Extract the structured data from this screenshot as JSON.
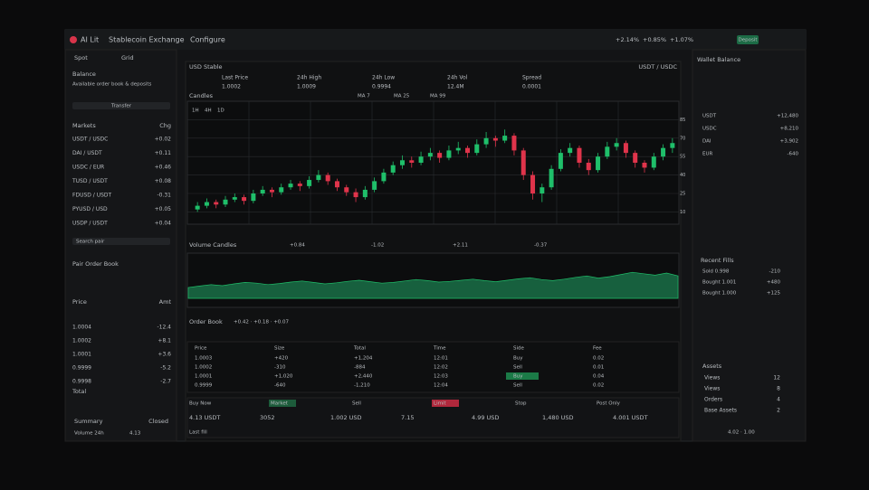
{
  "header": {
    "brand": "AI Lit",
    "title": "Stablecoin Exchange",
    "menu": "Configure",
    "tickers": [
      "+2.14%",
      "+0.85%",
      "+1.07%"
    ],
    "button": "Deposit"
  },
  "left": {
    "tabs": [
      "Spot",
      "Grid"
    ],
    "balance_label": "Balance",
    "balance_note": "Available order book & deposits",
    "transfer": "Transfer",
    "columns": [
      "Markets",
      "Chg"
    ],
    "markets": [
      [
        "USDT / USDC",
        "+0.02"
      ],
      [
        "DAI / USDT",
        "+0.11"
      ],
      [
        "USDC / EUR",
        "+0.46"
      ],
      [
        "TUSD / USDT",
        "+0.08"
      ],
      [
        "FDUSD / USDT",
        "-0.31"
      ],
      [
        "PYUSD / USD",
        "+0.05"
      ],
      [
        "USDP / USDT",
        "+0.04"
      ]
    ],
    "search": "Search pair",
    "book_title": "Pair Order Book",
    "book_cols": [
      "Price",
      "Amt"
    ],
    "book_total": "Total",
    "book_rows": [
      [
        "1.0004",
        "-12.4"
      ],
      [
        "1.0002",
        "+8.1"
      ],
      [
        "1.0001",
        "+3.6"
      ],
      [
        "0.9999",
        "-5.2"
      ],
      [
        "0.9998",
        "-2.7"
      ]
    ],
    "summary_label": "Summary",
    "summary_value": "Closed",
    "volume_label": "Volume 24h",
    "volume_value": "4.13"
  },
  "center": {
    "symbol": "USD Stable",
    "pair": "USDT / USDC",
    "stats": [
      [
        "Last Price",
        "1.0002"
      ],
      [
        "24h High",
        "1.0009"
      ],
      [
        "24h Low",
        "0.9994"
      ],
      [
        "24h Vol",
        "12.4M"
      ],
      [
        "Spread",
        "0.0001"
      ]
    ],
    "chart_title": "Candles",
    "indicators": [
      "MA 7",
      "MA 25",
      "MA 99"
    ],
    "intervals": [
      "1H",
      "4H",
      "1D"
    ],
    "price_chart": {
      "ylim": [
        0,
        100
      ],
      "yticks": [
        10,
        25,
        40,
        55,
        70,
        85
      ],
      "candles": [
        [
          12,
          18,
          10,
          15
        ],
        [
          15,
          21,
          13,
          18
        ],
        [
          18,
          20,
          13,
          16
        ],
        [
          16,
          23,
          14,
          20
        ],
        [
          20,
          25,
          18,
          22
        ],
        [
          22,
          24,
          16,
          19
        ],
        [
          19,
          28,
          17,
          25
        ],
        [
          25,
          31,
          23,
          28
        ],
        [
          28,
          30,
          22,
          26
        ],
        [
          26,
          33,
          24,
          30
        ],
        [
          30,
          36,
          28,
          33
        ],
        [
          33,
          35,
          27,
          31
        ],
        [
          31,
          39,
          29,
          36
        ],
        [
          36,
          44,
          34,
          40
        ],
        [
          40,
          42,
          32,
          35
        ],
        [
          35,
          37,
          27,
          30
        ],
        [
          30,
          32,
          23,
          26
        ],
        [
          26,
          29,
          18,
          22
        ],
        [
          22,
          31,
          20,
          28
        ],
        [
          28,
          38,
          26,
          35
        ],
        [
          35,
          45,
          33,
          42
        ],
        [
          42,
          51,
          40,
          48
        ],
        [
          48,
          56,
          45,
          52
        ],
        [
          52,
          55,
          46,
          50
        ],
        [
          50,
          59,
          48,
          55
        ],
        [
          55,
          62,
          52,
          58
        ],
        [
          58,
          60,
          50,
          54
        ],
        [
          54,
          64,
          52,
          60
        ],
        [
          60,
          67,
          57,
          62
        ],
        [
          62,
          64,
          54,
          58
        ],
        [
          58,
          69,
          56,
          65
        ],
        [
          65,
          75,
          62,
          70
        ],
        [
          70,
          72,
          63,
          68
        ],
        [
          68,
          77,
          66,
          72
        ],
        [
          72,
          74,
          56,
          60
        ],
        [
          60,
          62,
          36,
          40
        ],
        [
          40,
          43,
          20,
          25
        ],
        [
          25,
          33,
          18,
          30
        ],
        [
          30,
          48,
          28,
          45
        ],
        [
          45,
          61,
          43,
          58
        ],
        [
          58,
          66,
          55,
          62
        ],
        [
          62,
          64,
          46,
          50
        ],
        [
          50,
          53,
          40,
          44
        ],
        [
          44,
          58,
          42,
          55
        ],
        [
          55,
          67,
          53,
          63
        ],
        [
          63,
          70,
          60,
          66
        ],
        [
          66,
          68,
          54,
          58
        ],
        [
          58,
          60,
          46,
          50
        ],
        [
          50,
          52,
          42,
          46
        ],
        [
          46,
          58,
          44,
          55
        ],
        [
          55,
          65,
          52,
          62
        ],
        [
          62,
          70,
          58,
          66
        ]
      ]
    },
    "volume_title": "Volume Candles",
    "volume_tabs": [
      "+0.84",
      "-1.02",
      "+2.11",
      "-0.37"
    ],
    "volume_chart": {
      "ylim": [
        0,
        100
      ],
      "values": [
        30,
        34,
        38,
        35,
        40,
        44,
        42,
        38,
        41,
        45,
        48,
        44,
        40,
        43,
        47,
        50,
        46,
        42,
        44,
        48,
        52,
        49,
        45,
        47,
        50,
        53,
        49,
        46,
        50,
        54,
        57,
        52,
        49,
        53,
        58,
        62,
        56,
        60,
        66,
        72,
        68,
        64,
        70,
        62
      ]
    },
    "book_title": "Order Book",
    "book_meta": "+0.42 · +0.18 · +0.07",
    "book_columns": [
      "Price",
      "Size",
      "Total",
      "Time",
      "Side",
      "Fee"
    ],
    "book_rows": [
      [
        "1.0003",
        "+420",
        "+1,204",
        "12:01",
        "Buy",
        "0.02"
      ],
      [
        "1.0002",
        "-310",
        "-884",
        "12:02",
        "Sell",
        "0.01"
      ],
      [
        "1.0001",
        "+1,020",
        "+2,440",
        "12:03",
        "Buy",
        "0.04"
      ],
      [
        "0.9999",
        "-640",
        "-1,210",
        "12:04",
        "Sell",
        "0.02"
      ]
    ],
    "bottom": {
      "labels": [
        "Buy Now",
        "Market",
        "Sell",
        "Limit",
        "Stop",
        "Post Only"
      ],
      "values": [
        "4.13 USDT",
        "3052",
        "1.002 USD",
        "7.15",
        "4.99 USD",
        "1,480 USD",
        "4.001 USDT"
      ],
      "footer": "Last fill"
    }
  },
  "right": {
    "title": "Wallet Balance",
    "rows": [
      [
        "USDT",
        "+12,480"
      ],
      [
        "USDC",
        "+8,210"
      ],
      [
        "DAI",
        "+3,902"
      ],
      [
        "EUR",
        "-640"
      ]
    ],
    "fills_title": "Recent Fills",
    "fills": [
      [
        "Sold 0.998",
        "-210"
      ],
      [
        "Bought 1.001",
        "+480"
      ],
      [
        "Bought 1.000",
        "+125"
      ]
    ],
    "assets_title": "Assets",
    "assets": [
      [
        "Views",
        "12"
      ],
      [
        "Views",
        "8"
      ],
      [
        "Orders",
        "4"
      ],
      [
        "Base Assets",
        "2"
      ]
    ],
    "footer": "4.02 · 1.00"
  }
}
